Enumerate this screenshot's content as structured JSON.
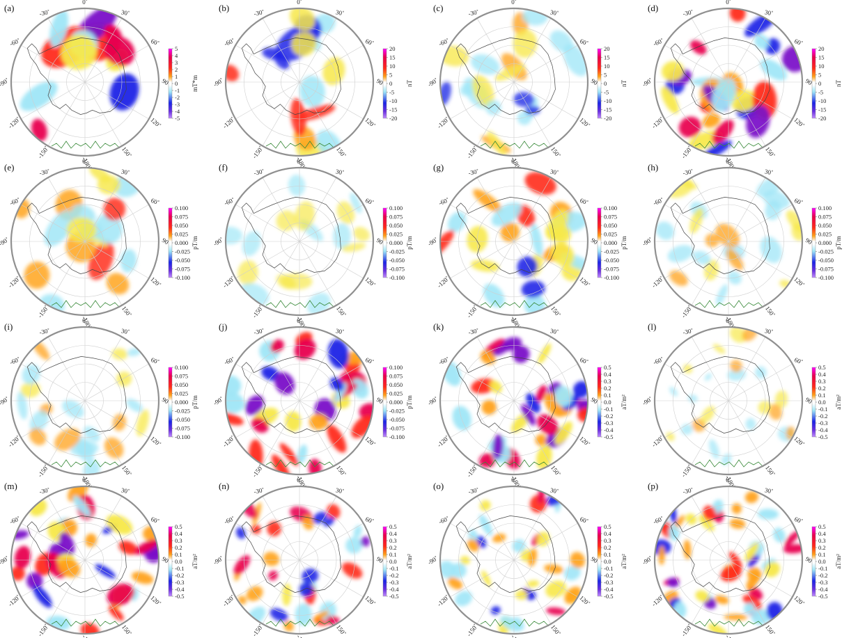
{
  "lon_labels": [
    "0˚",
    "30˚",
    "60˚",
    "90˚",
    "120˚",
    "150˚",
    "-180˚",
    "-150˚",
    "-120˚",
    "-90˚",
    "-60˚",
    "-30˚"
  ],
  "colors": {
    "strong_pos": "#e8004f",
    "pos": "#ff2a1a",
    "mid_pos": "#ffa21a",
    "weak_pos": "#f7e84a",
    "weak_neg": "#9fe6f7",
    "neg": "#1c25e6",
    "strong_neg": "#7a12c8",
    "graticule": "#cfcfcf",
    "coast": "#444444",
    "rim": "#909090",
    "terrain": "#3a8a3a"
  },
  "panels": [
    {
      "label": "(a)",
      "unit": "mT*m",
      "ticks": [
        "5",
        "4",
        "3",
        "2",
        "1",
        "0",
        "-1",
        "-2",
        "-3",
        "-4",
        "-5"
      ],
      "seed": 11,
      "n": 12,
      "scale": 44,
      "amp": 1.0
    },
    {
      "label": "(b)",
      "unit": "nT",
      "ticks": [
        "20",
        "15",
        "10",
        "5",
        "0",
        "-5",
        "-10",
        "-15",
        "-20"
      ],
      "seed": 22,
      "n": 16,
      "scale": 36,
      "amp": 0.75
    },
    {
      "label": "(c)",
      "unit": "nT",
      "ticks": [
        "20",
        "15",
        "10",
        "5",
        "0",
        "-5",
        "-10",
        "-15",
        "-20"
      ],
      "seed": 33,
      "n": 20,
      "scale": 28,
      "amp": 0.55
    },
    {
      "label": "(d)",
      "unit": "nT",
      "ticks": [
        "20",
        "15",
        "10",
        "5",
        "0",
        "-5",
        "-10",
        "-15",
        "-20"
      ],
      "seed": 44,
      "n": 26,
      "scale": 30,
      "amp": 0.95
    },
    {
      "label": "(e)",
      "unit": "pT/m",
      "ticks": [
        "0.100",
        "0.075",
        "0.050",
        "0.025",
        "0.000",
        "-0.025",
        "-0.050",
        "-0.075",
        "-0.100"
      ],
      "seed": 55,
      "n": 18,
      "scale": 32,
      "amp": 0.7
    },
    {
      "label": "(f)",
      "unit": "pT/m",
      "ticks": [
        "0.100",
        "0.075",
        "0.050",
        "0.025",
        "0.000",
        "-0.025",
        "-0.050",
        "-0.075",
        "-0.100"
      ],
      "seed": 66,
      "n": 16,
      "scale": 24,
      "amp": 0.35
    },
    {
      "label": "(g)",
      "unit": "pT/m",
      "ticks": [
        "0.100",
        "0.075",
        "0.050",
        "0.025",
        "0.000",
        "-0.025",
        "-0.050",
        "-0.075",
        "-0.100"
      ],
      "seed": 77,
      "n": 24,
      "scale": 28,
      "amp": 0.85
    },
    {
      "label": "(h)",
      "unit": "pT/m",
      "ticks": [
        "0.100",
        "0.075",
        "0.050",
        "0.025",
        "0.000",
        "-0.025",
        "-0.050",
        "-0.075",
        "-0.100"
      ],
      "seed": 88,
      "n": 22,
      "scale": 22,
      "amp": 0.5
    },
    {
      "label": "(i)",
      "unit": "pT/m",
      "ticks": [
        "0.100",
        "0.075",
        "0.050",
        "0.025",
        "0.000",
        "-0.025",
        "-0.050",
        "-0.075",
        "-0.100"
      ],
      "seed": 99,
      "n": 20,
      "scale": 22,
      "amp": 0.5
    },
    {
      "label": "(j)",
      "unit": "pT/m",
      "ticks": [
        "0.100",
        "0.075",
        "0.050",
        "0.025",
        "0.000",
        "-0.025",
        "-0.050",
        "-0.075",
        "-0.100"
      ],
      "seed": 111,
      "n": 34,
      "scale": 24,
      "amp": 1.0
    },
    {
      "label": "(k)",
      "unit": "aT/m²",
      "ticks": [
        "0.5",
        "0.4",
        "0.3",
        "0.2",
        "0.1",
        "0.0",
        "-0.1",
        "-0.2",
        "-0.3",
        "-0.4",
        "-0.5"
      ],
      "seed": 122,
      "n": 34,
      "scale": 22,
      "amp": 1.0
    },
    {
      "label": "(l)",
      "unit": "aT/m²",
      "ticks": [
        "0.5",
        "0.4",
        "0.3",
        "0.2",
        "0.1",
        "0.0",
        "-0.1",
        "-0.2",
        "-0.3",
        "-0.4",
        "-0.5"
      ],
      "seed": 133,
      "n": 22,
      "scale": 16,
      "amp": 0.4
    },
    {
      "label": "(m)",
      "unit": "aT/m²",
      "ticks": [
        "0.5",
        "0.4",
        "0.3",
        "0.2",
        "0.1",
        "0.0",
        "-0.1",
        "-0.2",
        "-0.3",
        "-0.4",
        "-0.5"
      ],
      "seed": 144,
      "n": 36,
      "scale": 22,
      "amp": 1.0
    },
    {
      "label": "(n)",
      "unit": "aT/m²",
      "ticks": [
        "0.5",
        "0.4",
        "0.3",
        "0.2",
        "0.1",
        "0.0",
        "-0.1",
        "-0.2",
        "-0.3",
        "-0.4",
        "-0.5"
      ],
      "seed": 155,
      "n": 34,
      "scale": 18,
      "amp": 0.85
    },
    {
      "label": "(o)",
      "unit": "aT/m²",
      "ticks": [
        "0.5",
        "0.4",
        "0.3",
        "0.2",
        "0.1",
        "0.0",
        "-0.1",
        "-0.2",
        "-0.3",
        "-0.4",
        "-0.5"
      ],
      "seed": 166,
      "n": 36,
      "scale": 18,
      "amp": 0.9
    },
    {
      "label": "(p)",
      "unit": "aT/m²",
      "ticks": [
        "0.5",
        "0.4",
        "0.3",
        "0.2",
        "0.1",
        "0.0",
        "-0.1",
        "-0.2",
        "-0.3",
        "-0.4",
        "-0.5"
      ],
      "seed": 177,
      "n": 48,
      "scale": 18,
      "amp": 1.0
    }
  ]
}
